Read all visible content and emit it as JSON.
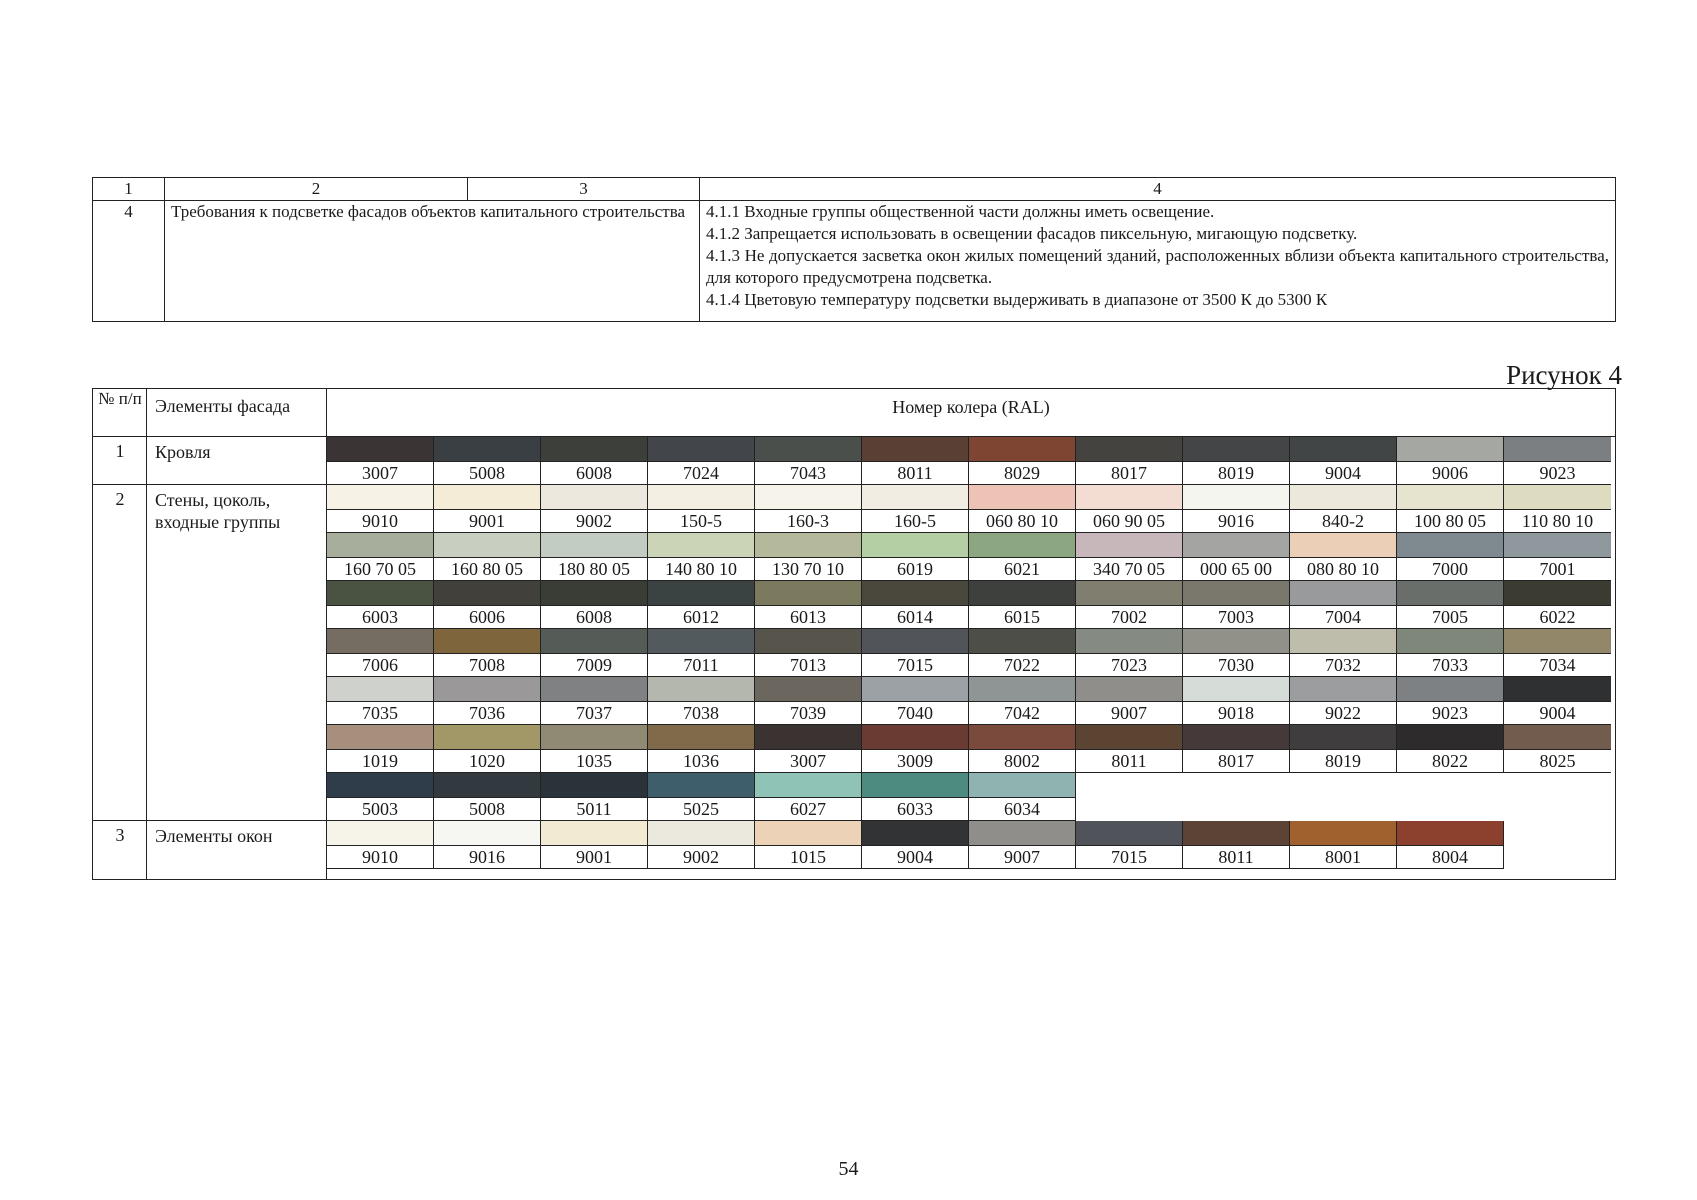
{
  "requirements_table": {
    "header": [
      "1",
      "2",
      "3",
      "4"
    ],
    "row": {
      "number": "4",
      "title": "Требования к подсветке фасадов объектов капитального строительства",
      "items": [
        "4.1.1 Входные группы общественной части должны иметь освещение.",
        "4.1.2 Запрещается использовать в освещении фасадов пиксельную, мигающую подсветку.",
        "4.1.3 Не допускается засветка окон жилых помещений зданий, расположенных вблизи объекта капитального строительства, для которого предусмотрена подсветка.",
        "4.1.4 Цветовую температуру подсветки выдерживать в диапазоне от 3500 К до 5300 К"
      ]
    }
  },
  "caption": "Рисунок 4",
  "color_table": {
    "headers": {
      "number": "№ п/п",
      "element": "Элементы фасада",
      "ral": "Номер колера (RAL)"
    },
    "groups": [
      {
        "number": "1",
        "element": "Кровля",
        "rows": [
          [
            {
              "code": "3007",
              "color": "#3a3434"
            },
            {
              "code": "5008",
              "color": "#3a3f44"
            },
            {
              "code": "6008",
              "color": "#3d403a"
            },
            {
              "code": "7024",
              "color": "#42464a"
            },
            {
              "code": "7043",
              "color": "#4b4f4c"
            },
            {
              "code": "8011",
              "color": "#5a4034"
            },
            {
              "code": "8029",
              "color": "#7e4632"
            },
            {
              "code": "8017",
              "color": "#454340"
            },
            {
              "code": "8019",
              "color": "#434546"
            },
            {
              "code": "9004",
              "color": "#424546"
            },
            {
              "code": "9006",
              "color": "#a5a7a3"
            },
            {
              "code": "9023",
              "color": "#7c7f82"
            }
          ]
        ]
      },
      {
        "number": "2",
        "element": "Стены, цоколь, входные группы",
        "rows": [
          [
            {
              "code": "9010",
              "color": "#f6f3e6"
            },
            {
              "code": "9001",
              "color": "#f4ecd6"
            },
            {
              "code": "9002",
              "color": "#ece8de"
            },
            {
              "code": "150-5",
              "color": "#f3efe3"
            },
            {
              "code": "160-3",
              "color": "#f6f4ea"
            },
            {
              "code": "160-5",
              "color": "#f2ede2"
            },
            {
              "code": "060 80 10",
              "color": "#ecc3b5"
            },
            {
              "code": "060 90 05",
              "color": "#f3ddd2"
            },
            {
              "code": "9016",
              "color": "#f5f5ef"
            },
            {
              "code": "840-2",
              "color": "#ede8dc"
            },
            {
              "code": "100 80 05",
              "color": "#e6e3cf"
            },
            {
              "code": "110 80 10",
              "color": "#dedcc0"
            }
          ],
          [
            {
              "code": "160 70 05",
              "color": "#a7ae9c"
            },
            {
              "code": "160 80 05",
              "color": "#c8cec0"
            },
            {
              "code": "180 80 05",
              "color": "#c3ccc3"
            },
            {
              "code": "140 80 10",
              "color": "#cbd4b6"
            },
            {
              "code": "130 70 10",
              "color": "#b3b99a"
            },
            {
              "code": "6019",
              "color": "#b4cfa3"
            },
            {
              "code": "6021",
              "color": "#8ca681"
            },
            {
              "code": "340 70 05",
              "color": "#c8b7ba"
            },
            {
              "code": "000 65 00",
              "color": "#a4a4a2"
            },
            {
              "code": "080 80 10",
              "color": "#eccfb7"
            },
            {
              "code": "7000",
              "color": "#7f8a90"
            },
            {
              "code": "7001",
              "color": "#8f989c"
            }
          ],
          [
            {
              "code": "6003",
              "color": "#4a5242"
            },
            {
              "code": "6006",
              "color": "#41403a"
            },
            {
              "code": "6008",
              "color": "#3a3c36"
            },
            {
              "code": "6012",
              "color": "#3a4342"
            },
            {
              "code": "6013",
              "color": "#7c7a5e"
            },
            {
              "code": "6014",
              "color": "#4a483c"
            },
            {
              "code": "6015",
              "color": "#3d403c"
            },
            {
              "code": "7002",
              "color": "#807e6e"
            },
            {
              "code": "7003",
              "color": "#7a776c"
            },
            {
              "code": "7004",
              "color": "#999a9b"
            },
            {
              "code": "7005",
              "color": "#6a6e6b"
            },
            {
              "code": "6022",
              "color": "#3c3b32"
            }
          ],
          [
            {
              "code": "7006",
              "color": "#766d62"
            },
            {
              "code": "7008",
              "color": "#7e653c"
            },
            {
              "code": "7009",
              "color": "#555b56"
            },
            {
              "code": "7011",
              "color": "#535a5e"
            },
            {
              "code": "7013",
              "color": "#57554b"
            },
            {
              "code": "7015",
              "color": "#51555a"
            },
            {
              "code": "7022",
              "color": "#4e4e49"
            },
            {
              "code": "7023",
              "color": "#858a82"
            },
            {
              "code": "7030",
              "color": "#929189"
            },
            {
              "code": "7032",
              "color": "#bebcaa"
            },
            {
              "code": "7033",
              "color": "#7e877a"
            },
            {
              "code": "7034",
              "color": "#93876a"
            }
          ],
          [
            {
              "code": "7035",
              "color": "#cfd1cc"
            },
            {
              "code": "7036",
              "color": "#9a9899"
            },
            {
              "code": "7037",
              "color": "#7f8182"
            },
            {
              "code": "7038",
              "color": "#b4b7ae"
            },
            {
              "code": "7039",
              "color": "#6b675f"
            },
            {
              "code": "7040",
              "color": "#9ca1a6"
            },
            {
              "code": "7042",
              "color": "#8f9494"
            },
            {
              "code": "9007",
              "color": "#8f8e8b"
            },
            {
              "code": "9018",
              "color": "#d6dcd8"
            },
            {
              "code": "9022",
              "color": "#9c9d9e"
            },
            {
              "code": "9023",
              "color": "#7e8184"
            },
            {
              "code": "9004",
              "color": "#2e3032"
            }
          ],
          [
            {
              "code": "1019",
              "color": "#a68f7c"
            },
            {
              "code": "1020",
              "color": "#a29867"
            },
            {
              "code": "1035",
              "color": "#908a74"
            },
            {
              "code": "1036",
              "color": "#806a49"
            },
            {
              "code": "3007",
              "color": "#3b3232"
            },
            {
              "code": "3009",
              "color": "#6a3b33"
            },
            {
              "code": "8002",
              "color": "#7a4a3c"
            },
            {
              "code": "8011",
              "color": "#5c4433"
            },
            {
              "code": "8017",
              "color": "#45393a"
            },
            {
              "code": "8019",
              "color": "#3f3d3e"
            },
            {
              "code": "8022",
              "color": "#2d2b2b"
            },
            {
              "code": "8025",
              "color": "#715c4d"
            }
          ],
          [
            {
              "code": "5003",
              "color": "#2f3c4a"
            },
            {
              "code": "5008",
              "color": "#32393f"
            },
            {
              "code": "5011",
              "color": "#2a323a"
            },
            {
              "code": "5025",
              "color": "#3f5e6c"
            },
            {
              "code": "6027",
              "color": "#8fc3b6"
            },
            {
              "code": "6033",
              "color": "#4d8a80"
            },
            {
              "code": "6034",
              "color": "#8fb3b0"
            }
          ]
        ]
      },
      {
        "number": "3",
        "element": "Элементы окон",
        "rows": [
          [
            {
              "code": "9010",
              "color": "#f6f3e8"
            },
            {
              "code": "9016",
              "color": "#f6f6f2"
            },
            {
              "code": "9001",
              "color": "#f3ead3"
            },
            {
              "code": "9002",
              "color": "#ebe8dd"
            },
            {
              "code": "1015",
              "color": "#ecd3b8"
            },
            {
              "code": "9004",
              "color": "#323335"
            },
            {
              "code": "9007",
              "color": "#8f8e8a"
            },
            {
              "code": "7015",
              "color": "#50545a"
            },
            {
              "code": "8011",
              "color": "#5d4236"
            },
            {
              "code": "8001",
              "color": "#a0612f"
            },
            {
              "code": "8004",
              "color": "#8c412e"
            }
          ]
        ]
      }
    ]
  },
  "page_number": "54"
}
